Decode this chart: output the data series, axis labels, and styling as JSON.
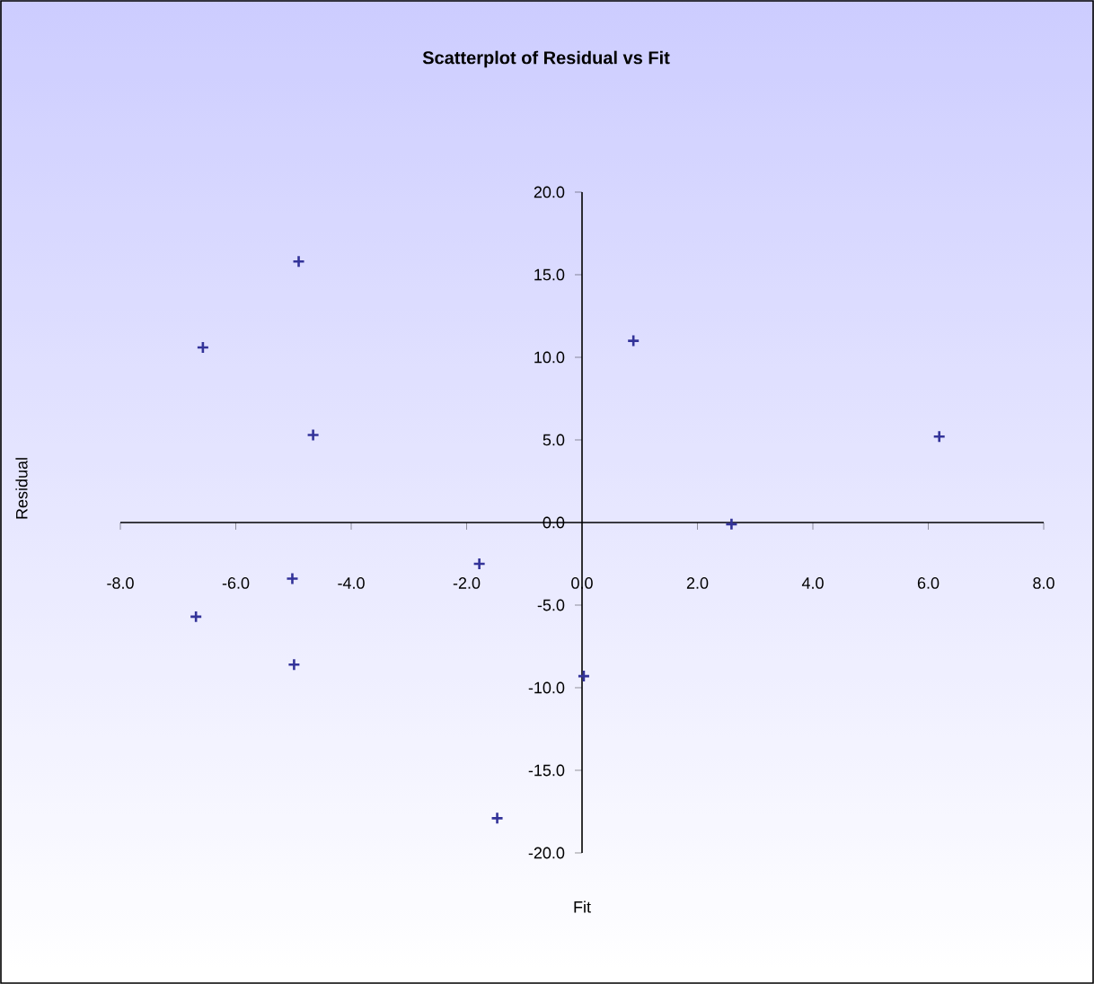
{
  "chart_data": {
    "type": "scatter",
    "title": "Scatterplot of Residual vs Fit",
    "xlabel": "Fit",
    "ylabel": "Residual",
    "x": [
      -4.91,
      -6.57,
      -4.66,
      -5.02,
      -6.69,
      -4.99,
      -1.78,
      -1.47,
      0.03,
      0.89,
      6.19,
      2.59
    ],
    "values": [
      15.8,
      10.6,
      5.3,
      -3.4,
      -5.7,
      -8.6,
      -2.5,
      -17.9,
      -9.3,
      11.0,
      5.2,
      -0.1
    ],
    "color": "#333399",
    "marker": "cross",
    "xlim": [
      -8,
      8
    ],
    "ylim": [
      -20,
      20
    ],
    "xticks": [
      {
        "value": -8,
        "label": "-8.0"
      },
      {
        "value": -6,
        "label": "-6.0"
      },
      {
        "value": -4,
        "label": "-4.0"
      },
      {
        "value": -2,
        "label": "-2.0"
      },
      {
        "value": 0,
        "label": "0.0"
      },
      {
        "value": 2,
        "label": "2.0"
      },
      {
        "value": 4,
        "label": "4.0"
      },
      {
        "value": 6,
        "label": "6.0"
      },
      {
        "value": 8,
        "label": "8.0"
      }
    ],
    "yticks": [
      {
        "value": -20,
        "label": "-20.0"
      },
      {
        "value": -15,
        "label": "-15.0"
      },
      {
        "value": -10,
        "label": "-10.0"
      },
      {
        "value": -5,
        "label": "-5.0"
      },
      {
        "value": 0,
        "label": "0.0"
      },
      {
        "value": 5,
        "label": "5.0"
      },
      {
        "value": 10,
        "label": "10.0"
      },
      {
        "value": 15,
        "label": "15.0"
      },
      {
        "value": 20,
        "label": "20.0"
      }
    ]
  }
}
